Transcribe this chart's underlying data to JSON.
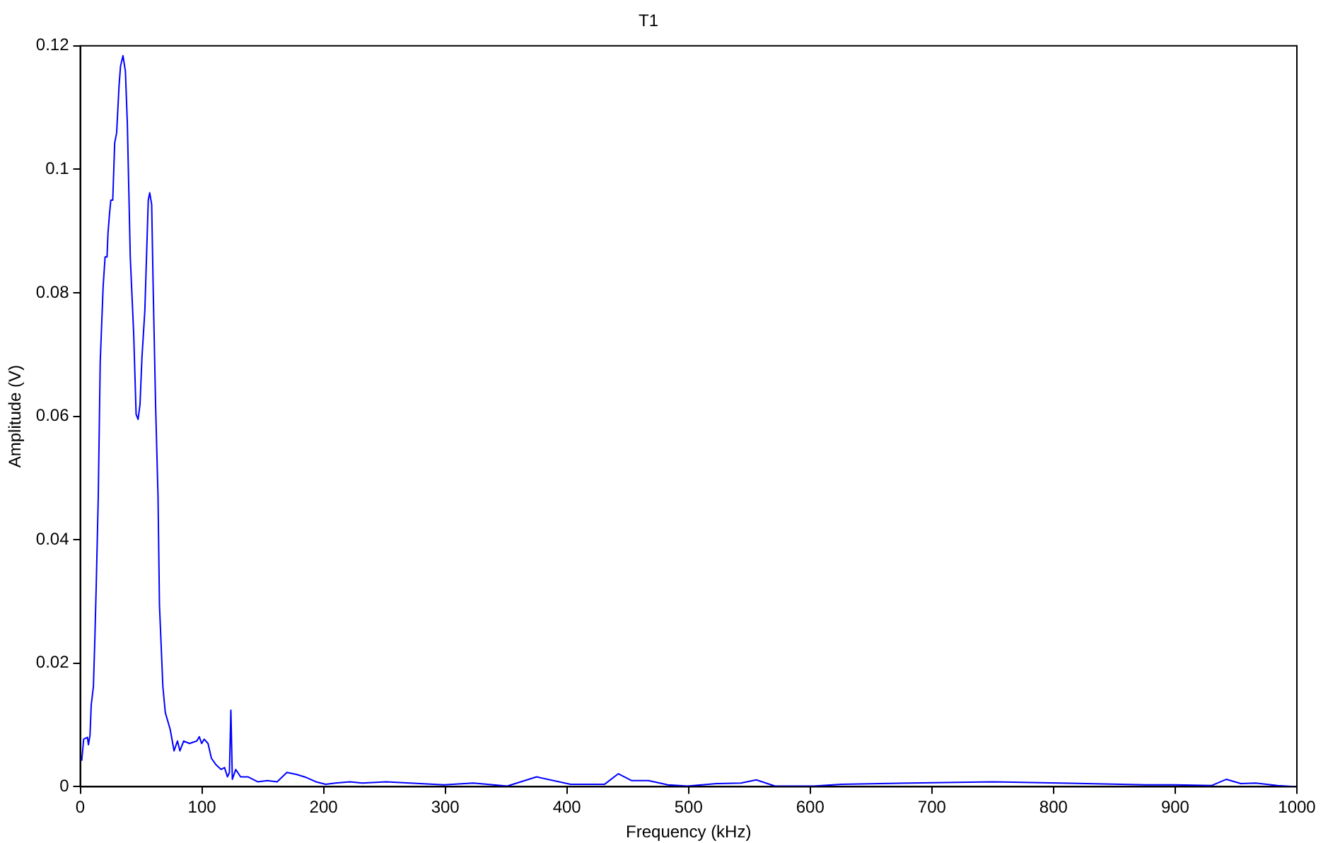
{
  "chart_data": {
    "type": "line",
    "title": "T1",
    "xlabel": "Frequency (kHz)",
    "ylabel": "Amplitude (V)",
    "xlim": [
      0,
      1000
    ],
    "xticks": [
      0,
      100,
      200,
      300,
      400,
      500,
      600,
      700,
      800,
      900,
      1000
    ],
    "ylim": [
      0,
      0.12
    ],
    "yticks": [
      0,
      0.02,
      0.04,
      0.06,
      0.08,
      0.1,
      0.12
    ],
    "marker": "none",
    "line_style": "solid",
    "series": [
      {
        "color": "#0000ff",
        "x": [
          1.2,
          2.8,
          5.9,
          6.7,
          8,
          9,
          10.8,
          12,
          13.2,
          14.8,
          16.4,
          18.8,
          20.4,
          22,
          22.8,
          24,
          25.1,
          26.7,
          28.3,
          29.9,
          31.9,
          33.1,
          35.1,
          37.1,
          38.7,
          39.9,
          41.1,
          43.9,
          45.9,
          47.5,
          49.1,
          50.7,
          53.1,
          54.7,
          55.9,
          57.1,
          58.7,
          59.9,
          61.9,
          63.9,
          65.1,
          67.9,
          69.9,
          73.9,
          77.1,
          79.9,
          81.9,
          85,
          89.8,
          95.8,
          97.8,
          99.8,
          101.8,
          105,
          107.8,
          111.8,
          115.8,
          118.6,
          121,
          122.6,
          123.8,
          125,
          127.8,
          131.8,
          137.8,
          145.8,
          153.8,
          161.8,
          169.8,
          177.7,
          185.7,
          193.7,
          201.7,
          209.7,
          221.7,
          231.7,
          251.5,
          299,
          323,
          351,
          375,
          403,
          431,
          442.3,
          453,
          467,
          483,
          499,
          523,
          543,
          555.7,
          571,
          603,
          625.5,
          750.5,
          876.4,
          900,
          930.1,
          942.1,
          954,
          966,
          984,
          1000
        ],
        "values": [
          0.0042,
          0.0077,
          0.008,
          0.0068,
          0.0083,
          0.0132,
          0.0162,
          0.024,
          0.0332,
          0.047,
          0.0688,
          0.081,
          0.0858,
          0.0858,
          0.0897,
          0.0927,
          0.095,
          0.095,
          0.1043,
          0.1059,
          0.1136,
          0.1167,
          0.1184,
          0.1159,
          0.1074,
          0.0966,
          0.0858,
          0.0734,
          0.0603,
          0.0595,
          0.0619,
          0.0695,
          0.0772,
          0.0874,
          0.095,
          0.0962,
          0.0943,
          0.0811,
          0.0619,
          0.0471,
          0.0294,
          0.0162,
          0.012,
          0.0093,
          0.0058,
          0.0074,
          0.0058,
          0.0074,
          0.007,
          0.0074,
          0.0081,
          0.007,
          0.0077,
          0.007,
          0.0046,
          0.0035,
          0.0028,
          0.0031,
          0.0016,
          0.0023,
          0.0124,
          0.0012,
          0.0028,
          0.0016,
          0.0016,
          0.0008,
          0.001,
          0.0008,
          0.0023,
          0.002,
          0.0015,
          0.0008,
          0.0004,
          0.0006,
          0.0008,
          0.0006,
          0.0008,
          0.0003,
          0.0006,
          0.0001,
          0.0016,
          0.0004,
          0.0004,
          0.0021,
          0.001,
          0.001,
          0.0003,
          0.0001,
          0.0005,
          0.0006,
          0.0011,
          0.0001,
          0.0001,
          0.0004,
          0.0008,
          0.0003,
          0.0003,
          0.0002,
          0.0012,
          0.0005,
          0.0006,
          0.0002,
          0
        ]
      }
    ]
  }
}
